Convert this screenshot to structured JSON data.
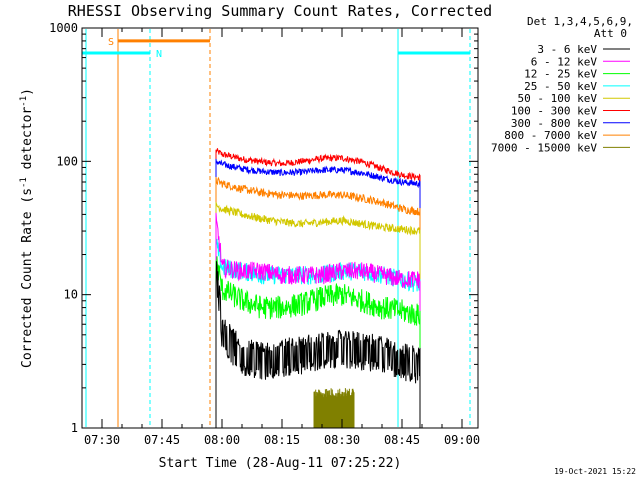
{
  "chart_data": {
    "type": "line",
    "title": "RHESSI Observing Summary Count Rates, Corrected",
    "xlabel": "Start Time (28-Aug-11 07:25:22)",
    "ylabel_main": "Corrected Count Rate (s",
    "ylabel_sup1": "-1",
    "ylabel_mid": " detector",
    "ylabel_sup2": "-1",
    "ylabel_end": ")",
    "yscale": "log",
    "xlim": [
      "07:25",
      "09:04"
    ],
    "ylim": [
      1,
      1000
    ],
    "x_ticks": [
      "07:30",
      "07:45",
      "08:00",
      "08:15",
      "08:30",
      "08:45",
      "09:00"
    ],
    "y_ticks": [
      {
        "value": 1,
        "label": "1"
      },
      {
        "value": 10,
        "label": "10"
      },
      {
        "value": 100,
        "label": "100"
      },
      {
        "value": 1000,
        "label": "1000"
      }
    ],
    "legend_header": [
      "Det 1,3,4,5,6,9,",
      "Att 0"
    ],
    "legend_placement": "right",
    "series": [
      {
        "name": "3 - 6 keV",
        "color": "#000000"
      },
      {
        "name": "6 - 12 keV",
        "color": "#ff00ff"
      },
      {
        "name": "12 - 25 keV",
        "color": "#00ff00"
      },
      {
        "name": "25 - 50 keV",
        "color": "#00ffff"
      },
      {
        "name": "50 - 100 keV",
        "color": "#d2c800"
      },
      {
        "name": "100 - 300 keV",
        "color": "#ff0000"
      },
      {
        "name": "300 - 800 keV",
        "color": "#0000ff"
      },
      {
        "name": "800 - 7000 keV",
        "color": "#ff8000"
      },
      {
        "name": "7000 - 15000 keV",
        "color": "#808000"
      }
    ],
    "data": {
      "start": "07:58:30",
      "end": "08:49:30",
      "profiles": [
        {
          "series": "100 - 300 keV",
          "times": [
            "07:58:30",
            "08:00",
            "08:05",
            "08:10",
            "08:15",
            "08:20",
            "08:25",
            "08:30",
            "08:35",
            "08:40",
            "08:45",
            "08:49"
          ],
          "values": [
            120,
            113,
            104,
            99,
            96,
            100,
            105,
            106,
            99,
            88,
            79,
            76
          ]
        },
        {
          "series": "300 - 800 keV",
          "times": [
            "07:58:30",
            "08:00",
            "08:05",
            "08:10",
            "08:15",
            "08:20",
            "08:25",
            "08:30",
            "08:35",
            "08:40",
            "08:45",
            "08:49"
          ],
          "values": [
            100,
            95,
            88,
            84,
            82,
            83,
            86,
            86,
            82,
            75,
            70,
            68
          ]
        },
        {
          "series": "800 - 7000 keV",
          "times": [
            "07:58:30",
            "08:00",
            "08:05",
            "08:10",
            "08:15",
            "08:20",
            "08:25",
            "08:30",
            "08:35",
            "08:40",
            "08:45",
            "08:49"
          ],
          "values": [
            72,
            68,
            62,
            58,
            56,
            55,
            56,
            56,
            53,
            49,
            44,
            42
          ]
        },
        {
          "series": "50 - 100 keV",
          "times": [
            "07:58:30",
            "08:00",
            "08:05",
            "08:10",
            "08:15",
            "08:20",
            "08:25",
            "08:30",
            "08:35",
            "08:40",
            "08:45",
            "08:49"
          ],
          "values": [
            47,
            44,
            40,
            37,
            35,
            34,
            35,
            36,
            34,
            32,
            31,
            30
          ]
        },
        {
          "series": "25 - 50 keV",
          "times": [
            "07:58:30",
            "08:00",
            "08:05",
            "08:10",
            "08:15",
            "08:20",
            "08:25",
            "08:30",
            "08:35",
            "08:40",
            "08:45",
            "08:49"
          ],
          "values": [
            24,
            16,
            15,
            14,
            14,
            14,
            14,
            15,
            15,
            14,
            13,
            12
          ]
        },
        {
          "series": "6 - 12 keV",
          "times": [
            "07:58:30",
            "08:00",
            "08:05",
            "08:10",
            "08:15",
            "08:20",
            "08:25",
            "08:30",
            "08:35",
            "08:40",
            "08:45",
            "08:49"
          ],
          "values": [
            35,
            16,
            15,
            15,
            14,
            14,
            14,
            15,
            15,
            14,
            13,
            13
          ]
        },
        {
          "series": "12 - 25 keV",
          "times": [
            "07:58:30",
            "08:00",
            "08:05",
            "08:10",
            "08:15",
            "08:20",
            "08:25",
            "08:30",
            "08:35",
            "08:40",
            "08:45",
            "08:49"
          ],
          "values": [
            18,
            11,
            9,
            8,
            8,
            8.5,
            9.5,
            10,
            9,
            8,
            7.5,
            7
          ]
        },
        {
          "series": "3 - 6 keV",
          "times": [
            "07:58:30",
            "08:00",
            "08:05",
            "08:10",
            "08:15",
            "08:20",
            "08:25",
            "08:30",
            "08:35",
            "08:40",
            "08:45",
            "08:49"
          ],
          "values": [
            15,
            5,
            3.5,
            3.2,
            3.4,
            3.6,
            3.8,
            4,
            3.8,
            3.6,
            3.2,
            3
          ]
        }
      ],
      "burst": {
        "series": "7000 - 15000 keV",
        "start": "08:23",
        "end": "08:33",
        "low": 1,
        "high": 2
      }
    },
    "annotations": {
      "saa": {
        "label": "S",
        "start": "07:34",
        "end": "07:57",
        "y": 800
      },
      "night": {
        "label": "N",
        "y": 650
      },
      "night_intervals": [
        [
          "07:25",
          "07:42"
        ],
        [
          "08:44",
          "09:02"
        ]
      ],
      "markers": [
        {
          "time": "07:26",
          "color": "#00ffff",
          "style": "solid"
        },
        {
          "time": "07:34",
          "color": "#ff8000",
          "style": "solid"
        },
        {
          "time": "07:42",
          "color": "#00ffff",
          "style": "dashed"
        },
        {
          "time": "07:57",
          "color": "#ff8000",
          "style": "dashed"
        },
        {
          "time": "08:44",
          "color": "#00ffff",
          "style": "solid"
        },
        {
          "time": "09:02",
          "color": "#00ffff",
          "style": "dashed"
        }
      ],
      "colors": {
        "saa": "#ff8000",
        "night": "#00ffff"
      }
    },
    "footer_date": "19-Oct-2021 15:22"
  }
}
